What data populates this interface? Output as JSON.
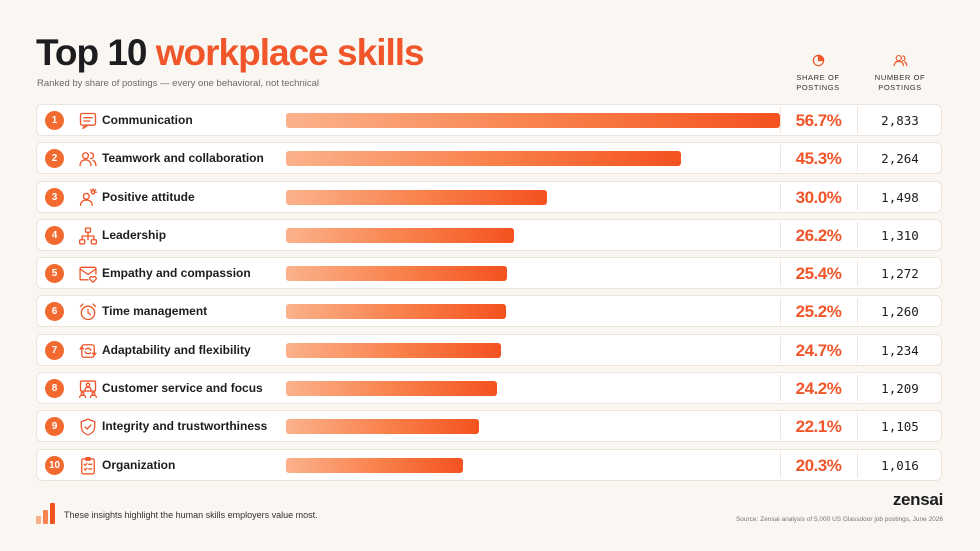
{
  "header": {
    "title_part1": "Top 10 ",
    "title_part2": "workplace skills",
    "subtitle": "Ranked by share of postings — every one behavioral, not technical",
    "col_share_line1": "SHARE OF",
    "col_share_line2": "POSTINGS",
    "col_count_line1": "NUMBER OF",
    "col_count_line2": "POSTINGS"
  },
  "colors": {
    "accent": "#f0562a",
    "bar_start": "#fbb28c",
    "bar_end": "#f4521f"
  },
  "chart_data": {
    "type": "bar",
    "orientation": "horizontal",
    "xlim": [
      0,
      56.7
    ],
    "categories": [
      "Communication",
      "Teamwork and collaboration",
      "Positive attitude",
      "Leadership",
      "Empathy and compassion",
      "Time management",
      "Adaptability and flexibility",
      "Customer service and focus",
      "Integrity and trustworthiness",
      "Organization"
    ],
    "values": [
      56.7,
      45.3,
      30.0,
      26.2,
      25.4,
      25.2,
      24.7,
      24.2,
      22.1,
      20.3
    ],
    "rows": [
      {
        "rank": "1",
        "label": "Communication",
        "share": 56.7,
        "share_label": "56.7%",
        "count": "2,833",
        "icon": "chat-icon"
      },
      {
        "rank": "2",
        "label": "Teamwork and collaboration",
        "share": 45.3,
        "share_label": "45.3%",
        "count": "2,264",
        "icon": "team-icon"
      },
      {
        "rank": "3",
        "label": "Positive attitude",
        "share": 30.0,
        "share_label": "30.0%",
        "count": "1,498",
        "icon": "sunny-person-icon"
      },
      {
        "rank": "4",
        "label": "Leadership",
        "share": 26.2,
        "share_label": "26.2%",
        "count": "1,310",
        "icon": "org-chart-icon"
      },
      {
        "rank": "5",
        "label": "Empathy and compassion",
        "share": 25.4,
        "share_label": "25.4%",
        "count": "1,272",
        "icon": "heart-mail-icon"
      },
      {
        "rank": "6",
        "label": "Time management",
        "share": 25.2,
        "share_label": "25.2%",
        "count": "1,260",
        "icon": "alarm-clock-icon"
      },
      {
        "rank": "7",
        "label": "Adaptability and flexibility",
        "share": 24.7,
        "share_label": "24.7%",
        "count": "1,234",
        "icon": "cycle-arrows-icon"
      },
      {
        "rank": "8",
        "label": "Customer service and focus",
        "share": 24.2,
        "share_label": "24.2%",
        "count": "1,209",
        "icon": "customer-service-icon"
      },
      {
        "rank": "9",
        "label": "Integrity and trustworthiness",
        "share": 22.1,
        "share_label": "22.1%",
        "count": "1,105",
        "icon": "shield-check-icon"
      },
      {
        "rank": "10",
        "label": "Organization",
        "share": 20.3,
        "share_label": "20.3%",
        "count": "1,016",
        "icon": "checklist-icon"
      }
    ]
  },
  "footer": {
    "note": "These insights highlight the human skills employers value most.",
    "brand": "zensai",
    "source": "Source: Zensai analysis of 5,000 US Glassdoor job postings, June 2026"
  }
}
